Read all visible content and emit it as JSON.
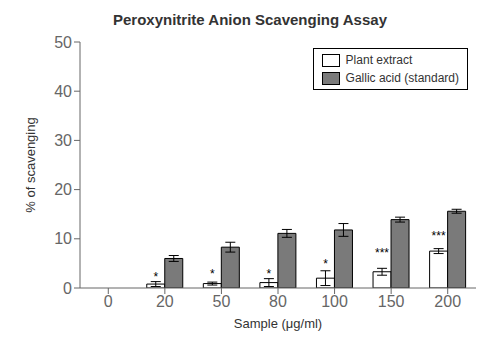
{
  "chart_data": {
    "type": "bar",
    "title": "Peroxynitrite Anion Scavenging Assay",
    "xlabel": "Sample (μg/ml)",
    "ylabel": "% of scavenging",
    "categories": [
      "0",
      "20",
      "50",
      "80",
      "100",
      "150",
      "200"
    ],
    "series": [
      {
        "name": "Plant extract",
        "color": "#ffffff",
        "values": [
          null,
          0.8,
          0.9,
          1.1,
          2.0,
          3.3,
          7.5
        ],
        "errors": [
          null,
          0.5,
          0.3,
          0.8,
          1.5,
          0.7,
          0.5
        ],
        "annotations": [
          null,
          "*",
          "*",
          "*",
          "*",
          "***",
          "***"
        ]
      },
      {
        "name": "Gallic acid (standard)",
        "color": "#7a7a7a",
        "values": [
          null,
          6.0,
          8.3,
          11.1,
          11.8,
          13.9,
          15.6
        ],
        "errors": [
          null,
          0.6,
          1.0,
          0.8,
          1.3,
          0.5,
          0.4
        ]
      }
    ],
    "ylim": [
      0,
      50
    ],
    "yticks": [
      0,
      10,
      20,
      30,
      40,
      50
    ],
    "grid": false,
    "legend": "upper right"
  }
}
